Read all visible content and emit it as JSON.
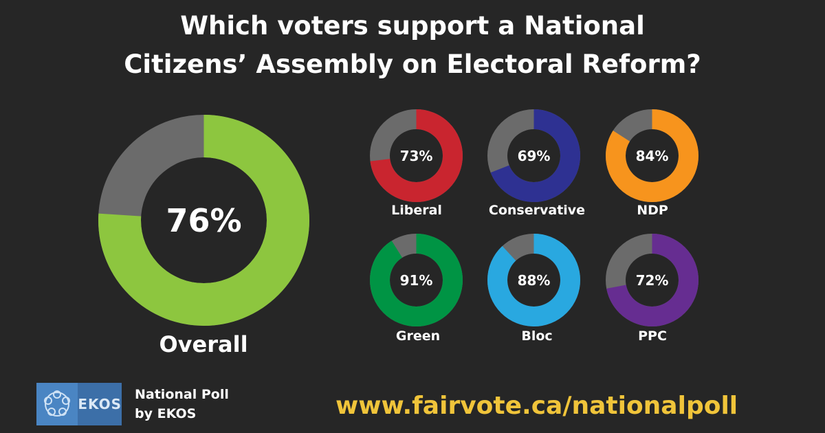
{
  "title_line1": "Which voters support a National",
  "title_line2": "Citizens’ Assembly on Electoral Reform?",
  "chart_data": {
    "type": "pie",
    "title": "Which voters support a National Citizens’ Assembly on Electoral Reform?",
    "remainder_color": "#6b6b6b",
    "overall": {
      "name": "Overall",
      "label": "76%",
      "value": 76,
      "color": "#8dc63f"
    },
    "parties": [
      {
        "name": "Liberal",
        "label": "73%",
        "value": 73,
        "color": "#c9252f"
      },
      {
        "name": "Conservative",
        "label": "69%",
        "value": 69,
        "color": "#2e3192"
      },
      {
        "name": "NDP",
        "label": "84%",
        "value": 84,
        "color": "#f7941d"
      },
      {
        "name": "Green",
        "label": "91%",
        "value": 91,
        "color": "#009444"
      },
      {
        "name": "Bloc",
        "label": "88%",
        "value": 88,
        "color": "#29a8e0"
      },
      {
        "name": "PPC",
        "label": "72%",
        "value": 72,
        "color": "#662d91"
      }
    ]
  },
  "footer": {
    "logo_text": "EKOS",
    "poll_line1": "National Poll",
    "poll_line2": "by EKOS",
    "url": "www.fairvote.ca/nationalpoll"
  }
}
